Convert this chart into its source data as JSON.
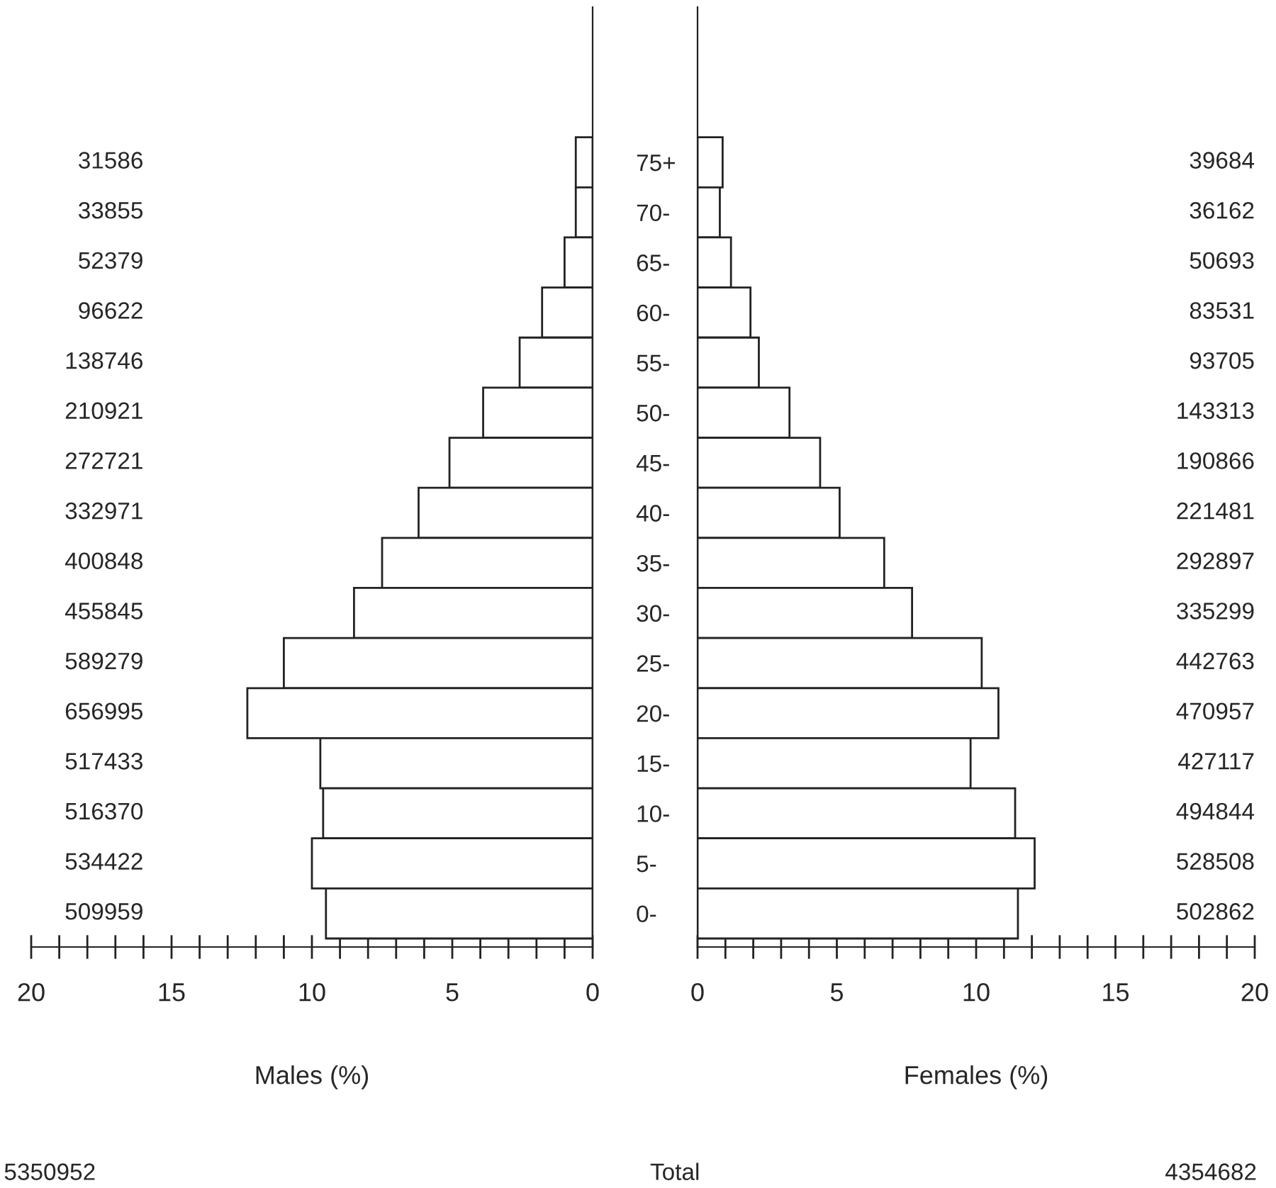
{
  "chart_data": [
    {
      "type": "bar",
      "orientation": "horizontal",
      "xlabel": "Males (%)",
      "categories": [
        "75+",
        "70-",
        "65-",
        "60-",
        "55-",
        "50-",
        "45-",
        "40-",
        "35-",
        "30-",
        "25-",
        "20-",
        "15-",
        "10-",
        "5-",
        "0-"
      ],
      "values": [
        0.6,
        0.6,
        1.0,
        1.8,
        2.6,
        3.9,
        5.1,
        6.2,
        7.5,
        8.5,
        11.0,
        12.3,
        9.7,
        9.6,
        10.0,
        9.5
      ],
      "color": "#ffffff",
      "xlim": [
        20,
        0
      ],
      "xticks": [
        0,
        5,
        10,
        15,
        20
      ],
      "annotations": [
        "31586",
        "33855",
        "52379",
        "96622",
        "138746",
        "210921",
        "272721",
        "332971",
        "400848",
        "455845",
        "589279",
        "656995",
        "517433",
        "516370",
        "534422",
        "509959",
        "5350952",
        "Total"
      ],
      "grid": false,
      "legend": false
    },
    {
      "type": "bar",
      "orientation": "horizontal",
      "xlabel": "Females (%)",
      "categories": [
        null,
        null,
        null,
        null,
        null,
        null,
        null,
        null,
        null,
        null,
        null,
        null,
        null,
        null,
        null,
        null
      ],
      "values": [
        0.9,
        0.8,
        1.2,
        1.9,
        2.2,
        3.3,
        4.4,
        5.1,
        6.7,
        7.7,
        10.2,
        10.8,
        9.8,
        11.4,
        12.1,
        11.5
      ],
      "color": "#ffffff",
      "xlim": [
        0,
        20
      ],
      "xticks": [
        0,
        5,
        10,
        15,
        20
      ],
      "tick_labels": "x",
      "annotations": [
        "39684",
        "36162",
        "50693",
        "83531",
        "93705",
        "143313",
        "190866",
        "221481",
        "292897",
        "335299",
        "442763",
        "470957",
        "427117",
        "494844",
        "528508",
        "502862",
        "4354682"
      ],
      "grid": false,
      "legend": false
    }
  ]
}
